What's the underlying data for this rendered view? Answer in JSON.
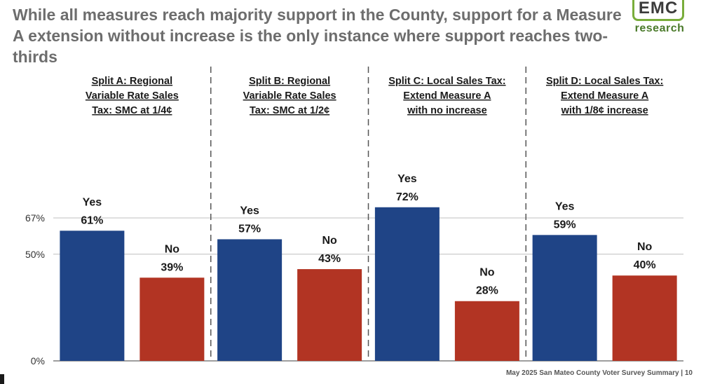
{
  "title": "While all measures reach majority support in the County, support for a Measure A extension without increase is the only instance where support reaches two-thirds",
  "logo": {
    "mark": "EMC",
    "sub": "research"
  },
  "footer": "May 2025 San Mateo County Voter Survey Summary | 10",
  "colors": {
    "yes": "#1f4486",
    "no": "#b23423",
    "gridline": "#bfbfbf",
    "divider": "#555555"
  },
  "chart_data": {
    "type": "bar",
    "ylim": [
      0,
      100
    ],
    "yticks": [
      {
        "value": 0,
        "label": "0%"
      },
      {
        "value": 50,
        "label": "50%"
      },
      {
        "value": 67,
        "label": "67%"
      }
    ],
    "groups": [
      {
        "title": [
          "Split A: Regional",
          "Variable Rate Sales",
          "Tax: SMC at 1/4¢"
        ],
        "bars": [
          {
            "category": "Yes",
            "value": 61,
            "label": "61%"
          },
          {
            "category": "No",
            "value": 39,
            "label": "39%"
          }
        ]
      },
      {
        "title": [
          "Split B: Regional",
          "Variable Rate Sales",
          "Tax: SMC at 1/2¢"
        ],
        "bars": [
          {
            "category": "Yes",
            "value": 57,
            "label": "57%"
          },
          {
            "category": "No",
            "value": 43,
            "label": "43%"
          }
        ]
      },
      {
        "title": [
          "Split C: Local Sales Tax:",
          "Extend Measure A",
          "with no increase"
        ],
        "bars": [
          {
            "category": "Yes",
            "value": 72,
            "label": "72%"
          },
          {
            "category": "No",
            "value": 28,
            "label": "28%"
          }
        ]
      },
      {
        "title": [
          "Split D: Local Sales Tax:",
          "Extend Measure A",
          "with 1/8¢ increase"
        ],
        "bars": [
          {
            "category": "Yes",
            "value": 59,
            "label": "59%"
          },
          {
            "category": "No",
            "value": 40,
            "label": "40%"
          }
        ]
      }
    ]
  }
}
